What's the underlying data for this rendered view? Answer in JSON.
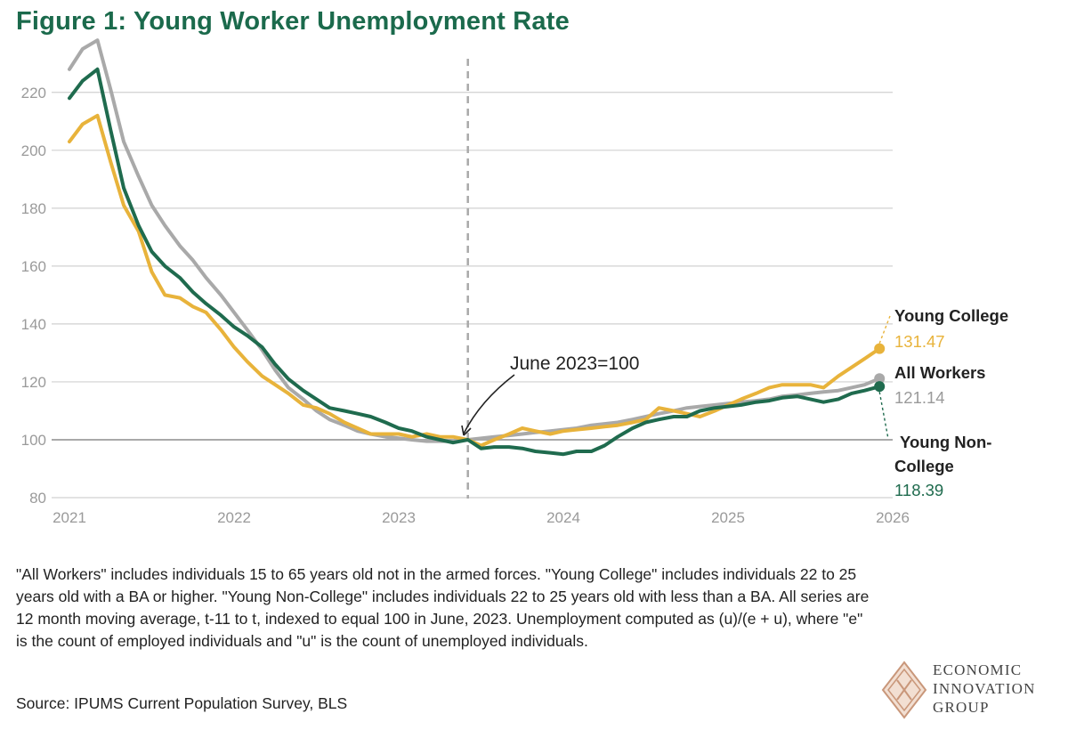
{
  "title": "Figure 1: Young Worker Unemployment Rate",
  "chart_data": {
    "type": "line",
    "title": "Figure 1: Young Worker Unemployment Rate",
    "xlabel": "",
    "ylabel": "",
    "x_ticks": [
      2021,
      2022,
      2023,
      2024,
      2025,
      2026
    ],
    "y_ticks": [
      80,
      100,
      120,
      140,
      160,
      180,
      200,
      220
    ],
    "xlim": [
      2021,
      2026
    ],
    "ylim": [
      80,
      235
    ],
    "baseline": 100,
    "reference_x": 2023.42,
    "annotation": "June 2023=100",
    "series": [
      {
        "name": "All Workers",
        "end_label": "121.14",
        "color": "#a9a9a9",
        "x": [
          2021.0,
          2021.08,
          2021.17,
          2021.25,
          2021.33,
          2021.42,
          2021.5,
          2021.58,
          2021.67,
          2021.75,
          2021.83,
          2021.92,
          2022.0,
          2022.08,
          2022.17,
          2022.25,
          2022.33,
          2022.42,
          2022.5,
          2022.58,
          2022.67,
          2022.75,
          2022.83,
          2022.92,
          2023.0,
          2023.08,
          2023.17,
          2023.25,
          2023.33,
          2023.42,
          2023.5,
          2023.58,
          2023.67,
          2023.75,
          2023.83,
          2023.92,
          2024.0,
          2024.08,
          2024.17,
          2024.25,
          2024.33,
          2024.42,
          2024.5,
          2024.58,
          2024.67,
          2024.75,
          2024.83,
          2024.92,
          2025.0,
          2025.08,
          2025.17,
          2025.25,
          2025.33,
          2025.42,
          2025.5,
          2025.58,
          2025.67,
          2025.75,
          2025.83,
          2025.92
        ],
        "values": [
          228,
          235,
          238,
          221,
          203,
          191,
          181,
          174,
          167,
          162,
          156,
          150,
          144,
          138,
          131,
          124,
          118,
          114,
          110,
          107,
          105,
          103,
          102,
          101,
          100.5,
          100,
          99.5,
          99.5,
          99.5,
          100,
          100.5,
          101,
          101.5,
          102,
          102.5,
          103,
          103.5,
          104,
          105,
          105.5,
          106,
          107,
          108,
          109,
          110,
          111,
          111.5,
          112,
          112.5,
          113,
          113.5,
          114,
          115,
          115.5,
          116,
          116.5,
          117,
          118,
          119,
          121.14
        ]
      },
      {
        "name": "Young College",
        "end_label": "131.47",
        "color": "#e8b33b",
        "x": [
          2021.0,
          2021.08,
          2021.17,
          2021.25,
          2021.33,
          2021.42,
          2021.5,
          2021.58,
          2021.67,
          2021.75,
          2021.83,
          2021.92,
          2022.0,
          2022.08,
          2022.17,
          2022.25,
          2022.33,
          2022.42,
          2022.5,
          2022.58,
          2022.67,
          2022.75,
          2022.83,
          2022.92,
          2023.0,
          2023.08,
          2023.17,
          2023.25,
          2023.33,
          2023.42,
          2023.5,
          2023.58,
          2023.67,
          2023.75,
          2023.83,
          2023.92,
          2024.0,
          2024.08,
          2024.17,
          2024.25,
          2024.33,
          2024.42,
          2024.5,
          2024.58,
          2024.67,
          2024.75,
          2024.83,
          2024.92,
          2025.0,
          2025.08,
          2025.17,
          2025.25,
          2025.33,
          2025.42,
          2025.5,
          2025.58,
          2025.67,
          2025.75,
          2025.83,
          2025.92
        ],
        "values": [
          203,
          209,
          212,
          196,
          181,
          172,
          158,
          150,
          149,
          146,
          144,
          138,
          132,
          127,
          122,
          119,
          116,
          112,
          111,
          109,
          106,
          104,
          102,
          102,
          102,
          101,
          102,
          101,
          101,
          100,
          98,
          100,
          102,
          104,
          103,
          102,
          103,
          103.5,
          104,
          104.5,
          105,
          106,
          107,
          111,
          110,
          109,
          108,
          110,
          112,
          114,
          116,
          118,
          119,
          119,
          119,
          118,
          122,
          125,
          128,
          131.47
        ]
      },
      {
        "name": "Young Non-College",
        "end_label": "118.39",
        "color": "#1f6b4e",
        "x": [
          2021.0,
          2021.08,
          2021.17,
          2021.25,
          2021.33,
          2021.42,
          2021.5,
          2021.58,
          2021.67,
          2021.75,
          2021.83,
          2021.92,
          2022.0,
          2022.08,
          2022.17,
          2022.25,
          2022.33,
          2022.42,
          2022.5,
          2022.58,
          2022.67,
          2022.75,
          2022.83,
          2022.92,
          2023.0,
          2023.08,
          2023.17,
          2023.25,
          2023.33,
          2023.42,
          2023.5,
          2023.58,
          2023.67,
          2023.75,
          2023.83,
          2023.92,
          2024.0,
          2024.08,
          2024.17,
          2024.25,
          2024.33,
          2024.42,
          2024.5,
          2024.58,
          2024.67,
          2024.75,
          2024.83,
          2024.92,
          2025.0,
          2025.08,
          2025.17,
          2025.25,
          2025.33,
          2025.42,
          2025.5,
          2025.58,
          2025.67,
          2025.75,
          2025.83,
          2025.92
        ],
        "values": [
          218,
          224,
          228,
          207,
          187,
          174,
          165,
          160,
          156,
          151,
          147,
          143,
          139,
          136,
          132,
          126,
          121,
          117,
          114,
          111,
          110,
          109,
          108,
          106,
          104,
          103,
          101,
          100,
          99,
          100,
          97,
          97.5,
          97.5,
          97,
          96,
          95.5,
          95,
          96,
          96,
          98,
          101,
          104,
          106,
          107,
          108,
          108,
          110,
          111,
          111.5,
          112,
          113,
          113.5,
          114.5,
          115,
          114,
          113,
          114,
          116,
          117,
          118.39
        ]
      }
    ]
  },
  "footnote": "\"All Workers\" includes individuals 15 to 65 years old not in the armed forces. \"Young College\" includes individuals 22 to 25 years old with a BA or higher. \"Young Non-College\" includes individuals 22 to 25 years old with less than a BA. All series are 12 month moving average, t-11 to t, indexed to equal 100 in June, 2023. Unemployment computed as (u)/(e + u), where \"e\" is the count of employed individuals and \"u\" is the count of unemployed individuals.",
  "source": "Source: IPUMS Current Population Survey, BLS",
  "logo": {
    "line1": "ECONOMIC",
    "line2": "INNOVATION",
    "line3": "GROUP"
  }
}
